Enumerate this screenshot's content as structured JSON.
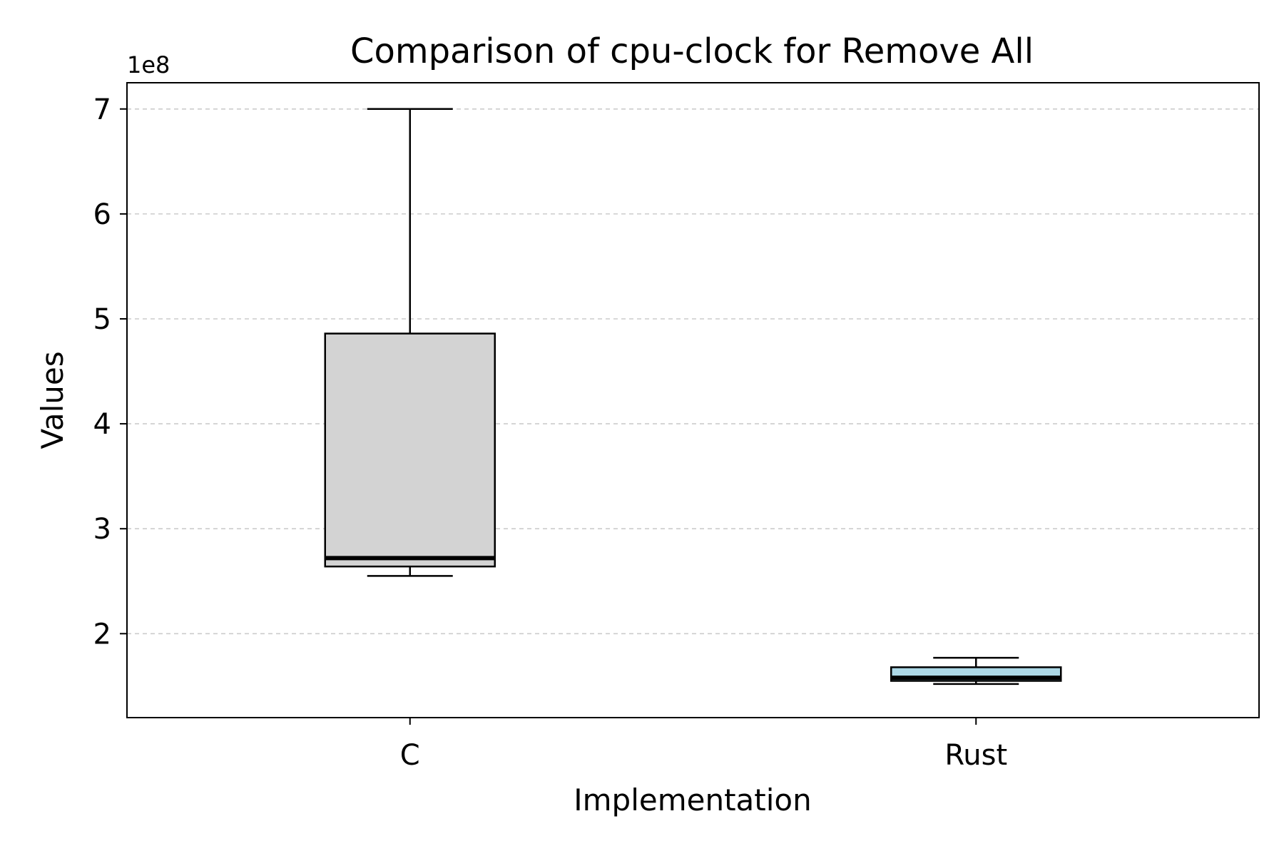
{
  "chart_data": {
    "type": "box",
    "title": "Comparison of cpu-clock for Remove All",
    "xlabel": "Implementation",
    "ylabel": "Values",
    "y_offset_label": "1e8",
    "y_scale": 100000000,
    "ylim": [
      120000000,
      725000000
    ],
    "yticks": [
      {
        "value": 200000000,
        "label": "2"
      },
      {
        "value": 300000000,
        "label": "3"
      },
      {
        "value": 400000000,
        "label": "4"
      },
      {
        "value": 500000000,
        "label": "5"
      },
      {
        "value": 600000000,
        "label": "6"
      },
      {
        "value": 700000000,
        "label": "7"
      }
    ],
    "grid": {
      "axis": "y",
      "style": "dashed",
      "color": "#cccccc"
    },
    "categories": [
      "C",
      "Rust"
    ],
    "boxes": [
      {
        "name": "C",
        "whisker_low": 255000000,
        "q1": 264000000,
        "median": 272000000,
        "q3": 486000000,
        "whisker_high": 700000000,
        "color": "#d3d3d3"
      },
      {
        "name": "Rust",
        "whisker_low": 152000000,
        "q1": 155000000,
        "median": 158000000,
        "q3": 168000000,
        "whisker_high": 177000000,
        "color": "#add8e6"
      }
    ]
  }
}
